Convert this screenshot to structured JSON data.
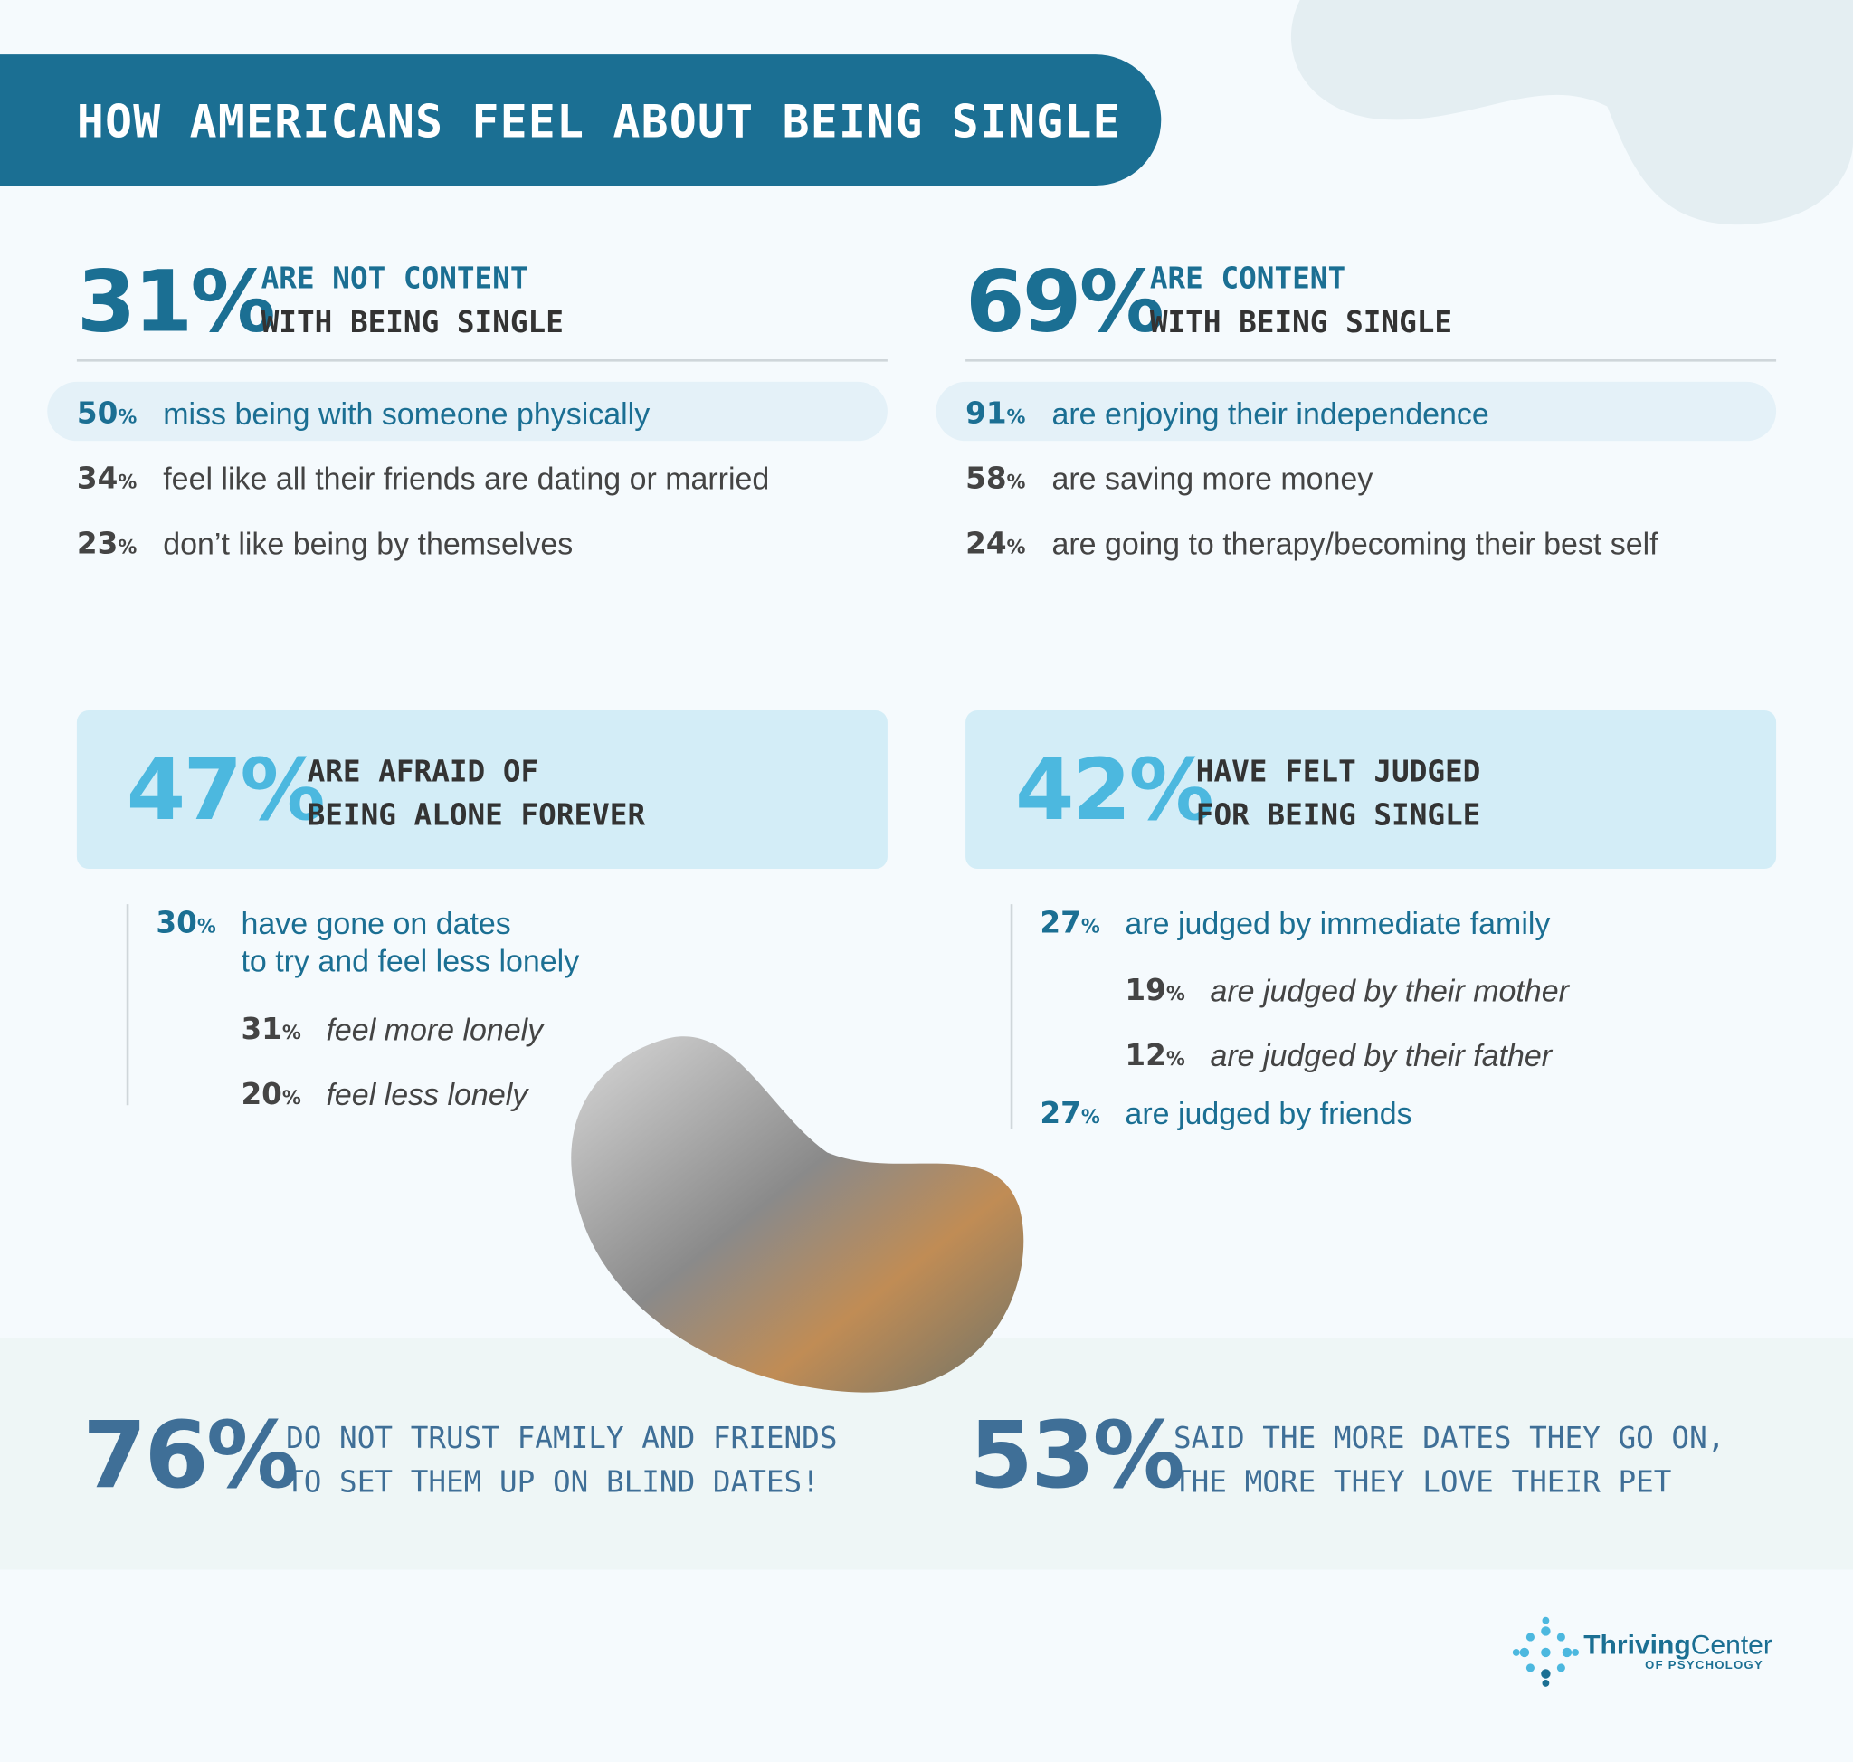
{
  "header": {
    "title": "HOW AMERICANS FEEL ABOUT BEING SINGLE"
  },
  "sections": [
    {
      "stat": {
        "number": "31",
        "unit": "%"
      },
      "label": [
        "ARE NOT CONTENT",
        "WITH BEING SINGLE"
      ],
      "items": [
        {
          "number": "50",
          "unit": "%",
          "text": "miss being with someone physically"
        },
        {
          "number": "34",
          "unit": "%",
          "text": "feel like all their friends are dating or married"
        },
        {
          "number": "23",
          "unit": "%",
          "text": "don’t like being by themselves"
        }
      ]
    },
    {
      "stat": {
        "number": "69",
        "unit": "%"
      },
      "label": [
        "ARE CONTENT",
        "WITH BEING SINGLE"
      ],
      "items": [
        {
          "number": "91",
          "unit": "%",
          "text": "are enjoying their independence"
        },
        {
          "number": "58",
          "unit": "%",
          "text": "are saving more money"
        },
        {
          "number": "24",
          "unit": "%",
          "text": "are going to therapy/becoming their best self"
        }
      ]
    }
  ],
  "highlights": [
    {
      "stat": {
        "number": "47",
        "unit": "%"
      },
      "label": [
        "ARE AFRAID OF",
        "BEING ALONE FOREVER"
      ],
      "items": [
        {
          "number": "30",
          "unit": "%",
          "text": [
            "have gone on dates",
            "to try and feel less lonely"
          ]
        },
        {
          "number": "31",
          "unit": "%",
          "text": "feel more lonely"
        },
        {
          "number": "20",
          "unit": "%",
          "text": "feel less lonely"
        }
      ]
    },
    {
      "stat": {
        "number": "42",
        "unit": "%"
      },
      "label": [
        "HAVE FELT JUDGED",
        "FOR BEING SINGLE"
      ],
      "items": [
        {
          "number": "27",
          "unit": "%",
          "text": "are judged by immediate family"
        },
        {
          "number": "19",
          "unit": "%",
          "text": "are judged by their mother"
        },
        {
          "number": "12",
          "unit": "%",
          "text": "are judged by their father"
        },
        {
          "number": "27",
          "unit": "%",
          "text": "are judged by friends"
        }
      ]
    }
  ],
  "bottom": [
    {
      "stat": {
        "number": "76",
        "unit": "%"
      },
      "label": [
        "DO NOT TRUST FAMILY AND FRIENDS",
        "TO SET THEM UP ON BLIND DATES!"
      ]
    },
    {
      "stat": {
        "number": "53",
        "unit": "%"
      },
      "label": [
        "SAID THE MORE DATES THEY GO ON,",
        "THE MORE THEY LOVE THEIR PET"
      ]
    }
  ],
  "logo": {
    "name_bold": "Thriving",
    "name_light": "Center",
    "tagline": "OF PSYCHOLOGY"
  }
}
